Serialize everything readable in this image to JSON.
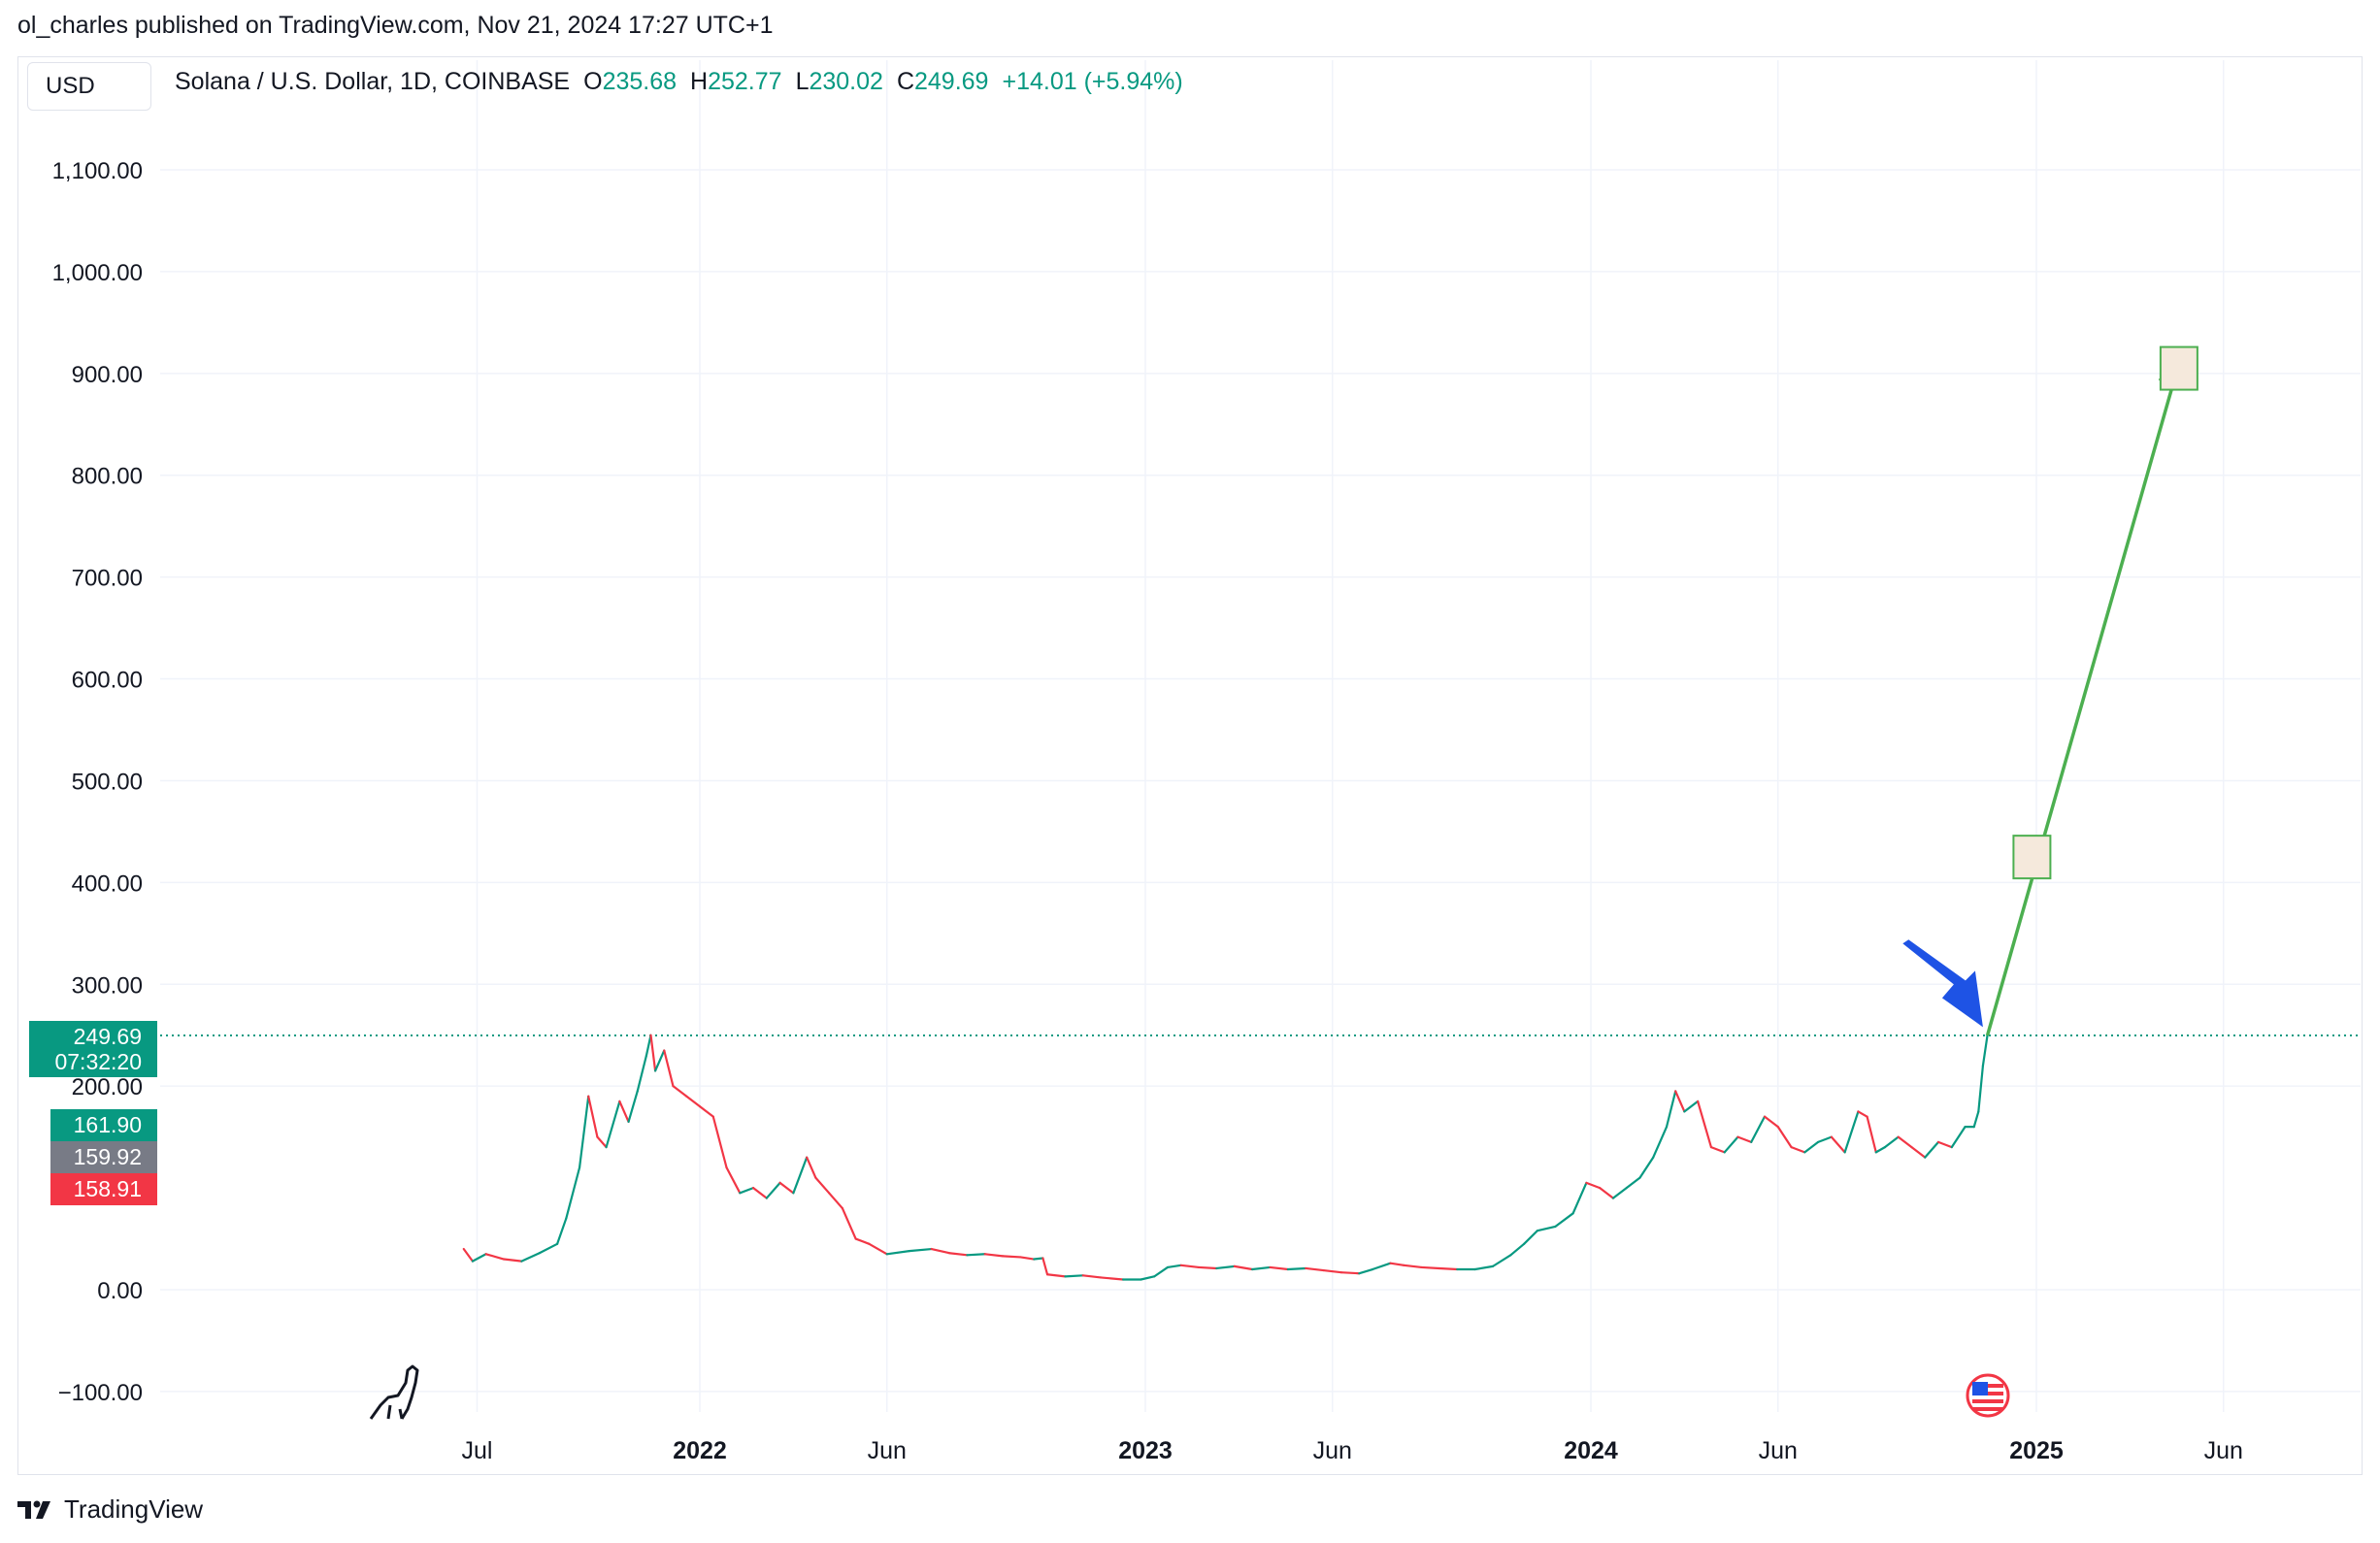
{
  "publisher": "ol_charles published on TradingView.com, Nov 21, 2024 17:27 UTC+1",
  "currency_button": "USD",
  "legend": {
    "symbol": "Solana / U.S. Dollar, 1D, COINBASE",
    "open_label": "O",
    "open": "235.68",
    "high_label": "H",
    "high": "252.77",
    "low_label": "L",
    "low": "230.02",
    "close_label": "C",
    "close": "249.69",
    "change": "+14.01 (+5.94%)"
  },
  "badges": {
    "last_price": "249.69",
    "countdown": "07:32:20",
    "ask": "161.90",
    "mid": "159.92",
    "bid": "158.91"
  },
  "footer": {
    "brand": "TradingView"
  },
  "colors": {
    "up": "#089981",
    "down": "#f23645",
    "neutral": "#787b86",
    "projection": "#4caf50",
    "marker": "#1e53e5",
    "target_box": "#f5e9dc"
  },
  "chart_data": {
    "type": "line",
    "title": "Solana / U.S. Dollar, 1D, COINBASE",
    "ylim": [
      -140,
      1210
    ],
    "y_ticks": [
      "1,100.00",
      "1,000.00",
      "900.00",
      "800.00",
      "700.00",
      "600.00",
      "500.00",
      "400.00",
      "300.00",
      "200.00",
      "0.00",
      "−100.00"
    ],
    "y_tick_values": [
      1100,
      1000,
      900,
      800,
      700,
      600,
      500,
      400,
      300,
      200,
      0,
      -100
    ],
    "x_ticks": [
      {
        "label": "Jul",
        "t": 2021.5,
        "bold": false
      },
      {
        "label": "2022",
        "t": 2022.0,
        "bold": true
      },
      {
        "label": "Jun",
        "t": 2022.42,
        "bold": false
      },
      {
        "label": "2023",
        "t": 2023.0,
        "bold": true
      },
      {
        "label": "Jun",
        "t": 2023.42,
        "bold": false
      },
      {
        "label": "2024",
        "t": 2024.0,
        "bold": true
      },
      {
        "label": "Jun",
        "t": 2024.42,
        "bold": false
      },
      {
        "label": "2025",
        "t": 2025.0,
        "bold": true
      },
      {
        "label": "Jun",
        "t": 2025.42,
        "bold": false
      }
    ],
    "xlim": [
      2020.83,
      2025.73
    ],
    "last_price": 249.69,
    "series": [
      {
        "name": "SOL/USD close",
        "points": [
          [
            2021.47,
            40
          ],
          [
            2021.49,
            28
          ],
          [
            2021.52,
            35
          ],
          [
            2021.56,
            30
          ],
          [
            2021.6,
            28
          ],
          [
            2021.64,
            36
          ],
          [
            2021.68,
            45
          ],
          [
            2021.7,
            70
          ],
          [
            2021.73,
            120
          ],
          [
            2021.75,
            190
          ],
          [
            2021.77,
            150
          ],
          [
            2021.79,
            140
          ],
          [
            2021.82,
            185
          ],
          [
            2021.84,
            165
          ],
          [
            2021.86,
            195
          ],
          [
            2021.88,
            230
          ],
          [
            2021.89,
            250
          ],
          [
            2021.9,
            215
          ],
          [
            2021.92,
            235
          ],
          [
            2021.94,
            200
          ],
          [
            2021.97,
            190
          ],
          [
            2022.0,
            180
          ],
          [
            2022.03,
            170
          ],
          [
            2022.06,
            120
          ],
          [
            2022.09,
            95
          ],
          [
            2022.12,
            100
          ],
          [
            2022.15,
            90
          ],
          [
            2022.18,
            105
          ],
          [
            2022.21,
            95
          ],
          [
            2022.24,
            130
          ],
          [
            2022.26,
            110
          ],
          [
            2022.29,
            95
          ],
          [
            2022.32,
            80
          ],
          [
            2022.35,
            50
          ],
          [
            2022.38,
            45
          ],
          [
            2022.42,
            35
          ],
          [
            2022.47,
            38
          ],
          [
            2022.52,
            40
          ],
          [
            2022.56,
            36
          ],
          [
            2022.6,
            34
          ],
          [
            2022.64,
            35
          ],
          [
            2022.68,
            33
          ],
          [
            2022.72,
            32
          ],
          [
            2022.75,
            30
          ],
          [
            2022.77,
            31
          ],
          [
            2022.78,
            15
          ],
          [
            2022.82,
            13
          ],
          [
            2022.86,
            14
          ],
          [
            2022.9,
            12
          ],
          [
            2022.95,
            10
          ],
          [
            2022.99,
            10
          ],
          [
            2023.02,
            13
          ],
          [
            2023.05,
            22
          ],
          [
            2023.08,
            24
          ],
          [
            2023.12,
            22
          ],
          [
            2023.16,
            21
          ],
          [
            2023.2,
            23
          ],
          [
            2023.24,
            20
          ],
          [
            2023.28,
            22
          ],
          [
            2023.32,
            20
          ],
          [
            2023.36,
            21
          ],
          [
            2023.4,
            19
          ],
          [
            2023.44,
            17
          ],
          [
            2023.48,
            16
          ],
          [
            2023.51,
            20
          ],
          [
            2023.55,
            26
          ],
          [
            2023.58,
            24
          ],
          [
            2023.62,
            22
          ],
          [
            2023.66,
            21
          ],
          [
            2023.7,
            20
          ],
          [
            2023.74,
            20
          ],
          [
            2023.78,
            23
          ],
          [
            2023.82,
            34
          ],
          [
            2023.85,
            45
          ],
          [
            2023.88,
            58
          ],
          [
            2023.92,
            62
          ],
          [
            2023.96,
            75
          ],
          [
            2023.99,
            105
          ],
          [
            2024.02,
            100
          ],
          [
            2024.05,
            90
          ],
          [
            2024.08,
            100
          ],
          [
            2024.11,
            110
          ],
          [
            2024.14,
            130
          ],
          [
            2024.17,
            160
          ],
          [
            2024.19,
            195
          ],
          [
            2024.21,
            175
          ],
          [
            2024.24,
            185
          ],
          [
            2024.27,
            140
          ],
          [
            2024.3,
            135
          ],
          [
            2024.33,
            150
          ],
          [
            2024.36,
            145
          ],
          [
            2024.39,
            170
          ],
          [
            2024.42,
            160
          ],
          [
            2024.45,
            140
          ],
          [
            2024.48,
            135
          ],
          [
            2024.51,
            145
          ],
          [
            2024.54,
            150
          ],
          [
            2024.57,
            135
          ],
          [
            2024.6,
            175
          ],
          [
            2024.62,
            170
          ],
          [
            2024.64,
            135
          ],
          [
            2024.66,
            140
          ],
          [
            2024.69,
            150
          ],
          [
            2024.72,
            140
          ],
          [
            2024.75,
            130
          ],
          [
            2024.78,
            145
          ],
          [
            2024.81,
            140
          ],
          [
            2024.84,
            160
          ],
          [
            2024.86,
            160
          ],
          [
            2024.87,
            175
          ],
          [
            2024.88,
            220
          ],
          [
            2024.89,
            249.69
          ]
        ]
      }
    ],
    "projection": {
      "points": [
        [
          2024.89,
          249.69
        ],
        [
          2025.32,
          910
        ]
      ],
      "boxes": [
        {
          "t": 2024.99,
          "value": 425
        },
        {
          "t": 2025.32,
          "value": 905
        }
      ]
    },
    "annotation_arrow": {
      "from": [
        2024.7,
        340
      ],
      "to": [
        2024.88,
        258
      ]
    },
    "last_price_line": 249.69
  }
}
